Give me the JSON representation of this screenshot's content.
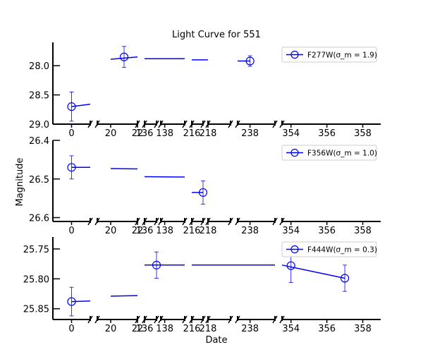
{
  "chart_data": {
    "type": "line",
    "title": "Light Curve for 551",
    "xlabel": "Date",
    "ylabel": "Magnitude",
    "broken_x_axis": true,
    "y_inverted": true,
    "x_segments": [
      {
        "range": [
          -1,
          1
        ],
        "ticks": [
          0
        ]
      },
      {
        "range": [
          19,
          22
        ],
        "ticks": [
          20,
          22
        ]
      },
      {
        "range": [
          136,
          137
        ],
        "ticks": [
          136
        ]
      },
      {
        "range": [
          137.8,
          139
        ],
        "ticks": [
          138
        ]
      },
      {
        "range": [
          216,
          217
        ],
        "ticks": [
          216
        ]
      },
      {
        "range": [
          218,
          219
        ],
        "ticks": [
          218
        ]
      },
      {
        "range": [
          237.5,
          239
        ],
        "ticks": [
          238
        ]
      },
      {
        "range": [
          353.5,
          359
        ],
        "ticks": [
          354,
          356,
          358
        ]
      }
    ],
    "panels": [
      {
        "legend": "F277W(σ_m = 1.9)",
        "legend_position": "top-right",
        "ylim": [
          29.0,
          27.6
        ],
        "yticks": [
          "28.0",
          "28.5",
          "29.0"
        ],
        "points": [
          {
            "x": 0,
            "y": 28.7,
            "err": 0.25
          },
          {
            "x": 21,
            "y": 27.85,
            "err": 0.18
          },
          {
            "x": 238,
            "y": 27.92,
            "err": 0.09
          }
        ],
        "lines": [
          {
            "x": [
              0,
              1
            ],
            "y": [
              28.7,
              28.66
            ]
          },
          {
            "x": [
              20,
              22
            ],
            "y": [
              27.89,
              27.85
            ]
          },
          {
            "x": [
              136,
              139
            ],
            "y": [
              27.88,
              27.88
            ]
          },
          {
            "x": [
              216,
              218
            ],
            "y": [
              27.9,
              27.9
            ]
          },
          {
            "x": [
              237.5,
              238
            ],
            "y": [
              27.92,
              27.92
            ]
          }
        ]
      },
      {
        "legend": "F356W(σ_m = 1.0)",
        "legend_position": "top-right",
        "ylim": [
          26.61,
          26.4
        ],
        "yticks": [
          "26.4",
          "26.5",
          "26.6"
        ],
        "points": [
          {
            "x": 0,
            "y": 26.47,
            "err": 0.03
          },
          {
            "x": 217,
            "y": 26.535,
            "err": 0.03
          }
        ],
        "lines": [
          {
            "x": [
              0,
              1
            ],
            "y": [
              26.47,
              26.47
            ]
          },
          {
            "x": [
              20,
              22
            ],
            "y": [
              26.473,
              26.474
            ]
          },
          {
            "x": [
              136,
              139
            ],
            "y": [
              26.494,
              26.495
            ]
          },
          {
            "x": [
              216,
              217
            ],
            "y": [
              26.535,
              26.535
            ]
          }
        ]
      },
      {
        "legend": "F444W(σ_m = 0.3)",
        "legend_position": "top-right",
        "ylim": [
          25.868,
          25.73
        ],
        "yticks": [
          "25.75",
          "25.80",
          "25.85"
        ],
        "points": [
          {
            "x": 0,
            "y": 25.838,
            "err": 0.024
          },
          {
            "x": 137,
            "y": 25.777,
            "err": 0.022
          },
          {
            "x": 354,
            "y": 25.778,
            "err": 0.028
          },
          {
            "x": 357,
            "y": 25.799,
            "err": 0.022
          }
        ],
        "lines": [
          {
            "x": [
              0,
              1
            ],
            "y": [
              25.838,
              25.837
            ]
          },
          {
            "x": [
              20,
              22
            ],
            "y": [
              25.829,
              25.828
            ]
          },
          {
            "x": [
              136,
              139
            ],
            "y": [
              25.777,
              25.777
            ]
          },
          {
            "x": [
              216,
              218
            ],
            "y": [
              25.777,
              25.777
            ]
          },
          {
            "x": [
              218,
              239
            ],
            "y": [
              25.777,
              25.777
            ]
          },
          {
            "x": [
              353.5,
              357
            ],
            "y": [
              25.777,
              25.799
            ]
          }
        ]
      }
    ]
  },
  "colors": {
    "series": "#0000ff",
    "axis": "#000000"
  }
}
